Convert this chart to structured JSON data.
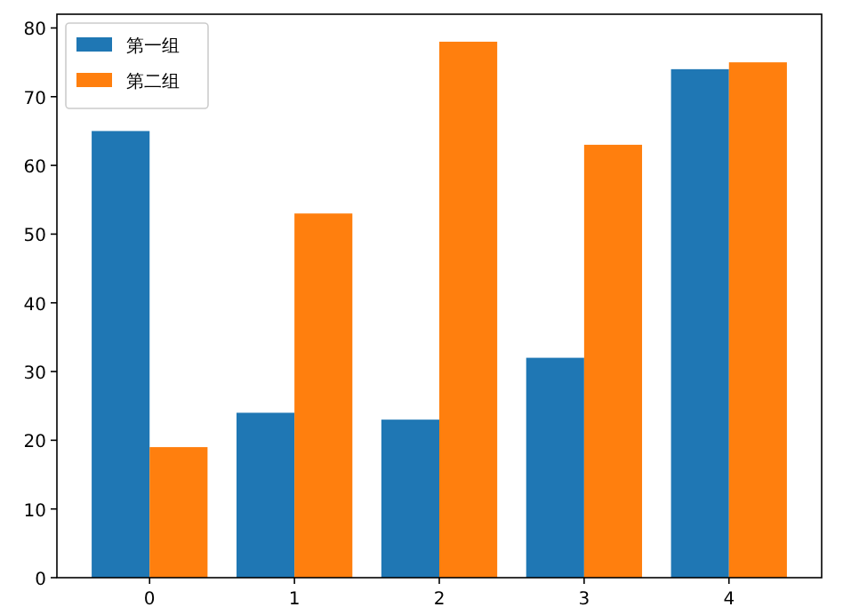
{
  "chart_data": {
    "type": "bar",
    "categories": [
      "0",
      "1",
      "2",
      "3",
      "4"
    ],
    "series": [
      {
        "name": "第一组",
        "color": "#1f77b4",
        "values": [
          65,
          24,
          23,
          32,
          74
        ]
      },
      {
        "name": "第二组",
        "color": "#ff7f0e",
        "values": [
          19,
          53,
          78,
          63,
          75
        ]
      }
    ],
    "ylim": [
      0,
      82
    ],
    "yticks": [
      0,
      10,
      20,
      30,
      40,
      50,
      60,
      70,
      80
    ],
    "legend": "top left",
    "grid": false
  }
}
